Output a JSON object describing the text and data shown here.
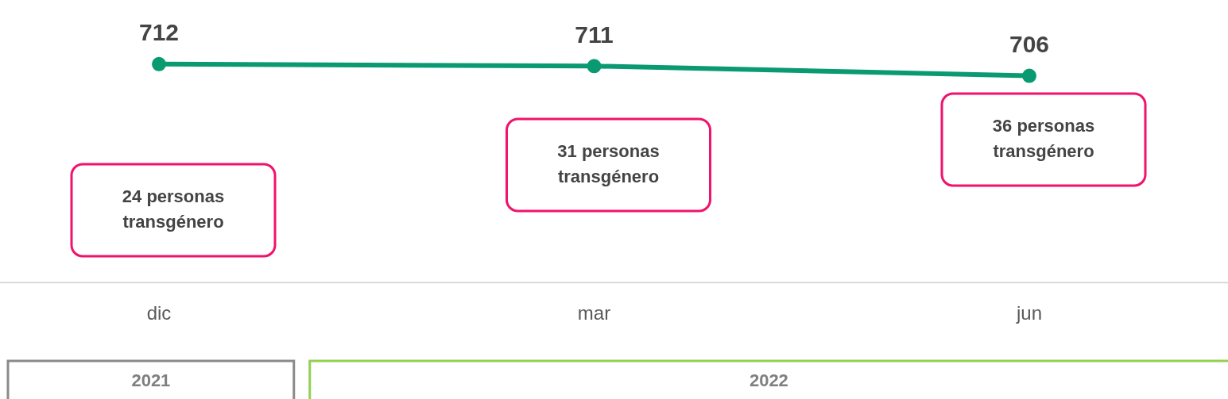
{
  "chart_data": {
    "type": "line",
    "categories": [
      "dic",
      "mar",
      "jun"
    ],
    "series": [
      {
        "color": "#0a9a72",
        "values": [
          712,
          711,
          706
        ]
      }
    ],
    "tick_labels": "x",
    "grid": false,
    "legend": false,
    "marker": "circle",
    "line_style": "solid",
    "data_labels": true,
    "annotations": [
      "24 personas transgénero",
      "31 personas transgénero",
      "36 personas transgénero",
      "2021",
      "2022"
    ]
  }
}
